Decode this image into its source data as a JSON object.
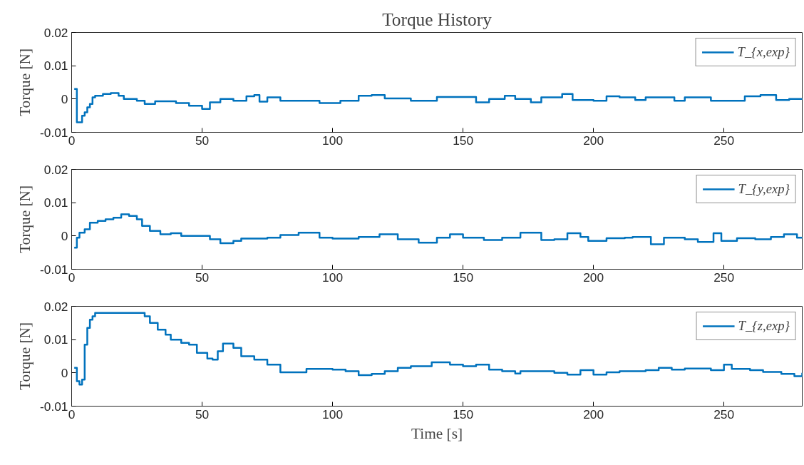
{
  "chart_data": [
    {
      "type": "step",
      "title": "Torque History",
      "ylabel": "Torque [N]",
      "xlim": [
        0,
        280
      ],
      "ylim": [
        -0.01,
        0.02
      ],
      "xticks": [
        0,
        50,
        100,
        150,
        200,
        250
      ],
      "yticks": [
        -0.01,
        0,
        0.01,
        0.02
      ],
      "grid": false,
      "legend": "top right",
      "x": [
        1,
        2,
        4,
        5,
        6,
        7,
        8,
        9,
        12,
        15,
        18,
        20,
        25,
        28,
        32,
        40,
        45,
        50,
        53,
        57,
        62,
        67,
        70,
        72,
        75,
        80,
        90,
        95,
        103,
        110,
        115,
        120,
        130,
        140,
        148,
        155,
        160,
        166,
        170,
        176,
        180,
        188,
        192,
        200,
        205,
        210,
        216,
        220,
        225,
        231,
        235,
        240,
        245,
        250,
        258,
        264,
        270,
        275,
        280
      ],
      "series": [
        {
          "name": "T_{x,exp}",
          "color": "#0072bd",
          "values": [
            0.003,
            -0.007,
            -0.005,
            -0.004,
            -0.0025,
            -0.0015,
            0.0005,
            0.001,
            0.0015,
            0.0018,
            0.001,
            0,
            -0.0005,
            -0.0015,
            -0.0007,
            -0.0012,
            -0.002,
            -0.003,
            -0.001,
            0,
            -0.0005,
            0.0008,
            0.0012,
            -0.0008,
            0.0005,
            -0.0005,
            -0.0005,
            -0.0012,
            -0.0005,
            0.001,
            0.0012,
            0.0002,
            -0.0005,
            0.0006,
            0.0006,
            -0.001,
            0,
            0.001,
            0,
            -0.001,
            0.0005,
            0.0015,
            -0.0003,
            -0.0005,
            0.0008,
            0.0005,
            -0.0003,
            0.0005,
            0.0005,
            -0.0005,
            0.0005,
            0.0005,
            -0.0005,
            -0.0005,
            0.0008,
            0.0012,
            -0.0003,
            0,
            -0.0002
          ]
        }
      ]
    },
    {
      "type": "step",
      "ylabel": "Torque [N]",
      "xlim": [
        0,
        280
      ],
      "ylim": [
        -0.01,
        0.02
      ],
      "xticks": [
        0,
        50,
        100,
        150,
        200,
        250
      ],
      "yticks": [
        -0.01,
        0,
        0.01,
        0.02
      ],
      "grid": false,
      "legend": "top right",
      "x": [
        1,
        2,
        3,
        5,
        7,
        10,
        13,
        16,
        19,
        22,
        25,
        27,
        30,
        34,
        38,
        42,
        50,
        53,
        57,
        62,
        65,
        75,
        80,
        87,
        95,
        100,
        110,
        118,
        125,
        133,
        140,
        145,
        150,
        158,
        165,
        172,
        180,
        185,
        190,
        195,
        198,
        205,
        212,
        215,
        222,
        227,
        235,
        240,
        246,
        249,
        255,
        262,
        268,
        273,
        278,
        280
      ],
      "series": [
        {
          "name": "T_{y,exp}",
          "color": "#0072bd",
          "values": [
            -0.0035,
            -0.0005,
            0.001,
            0.002,
            0.004,
            0.0045,
            0.005,
            0.0055,
            0.0065,
            0.006,
            0.005,
            0.003,
            0.0015,
            0.0005,
            0.0008,
            0,
            0,
            -0.001,
            -0.0022,
            -0.0015,
            -0.0008,
            -0.0005,
            0.0003,
            0.001,
            -0.0005,
            -0.0008,
            -0.0003,
            0.0005,
            -0.001,
            -0.002,
            -0.0005,
            0.0005,
            -0.0005,
            -0.0012,
            -0.0005,
            0.001,
            -0.0012,
            -0.001,
            0.0008,
            -0.0003,
            -0.0015,
            -0.0007,
            -0.0005,
            -0.0003,
            -0.0025,
            -0.0005,
            -0.001,
            -0.0018,
            0.0008,
            -0.0015,
            -0.0007,
            -0.001,
            -0.0003,
            0.0005,
            -0.0005,
            -0.0008
          ]
        }
      ]
    },
    {
      "type": "step",
      "xlabel": "Time [s]",
      "ylabel": "Torque [N]",
      "xlim": [
        0,
        280
      ],
      "ylim": [
        -0.01,
        0.02
      ],
      "xticks": [
        0,
        50,
        100,
        150,
        200,
        250
      ],
      "yticks": [
        -0.01,
        0,
        0.01,
        0.02
      ],
      "grid": false,
      "legend": "top right",
      "x": [
        1,
        2,
        3,
        4,
        5,
        6,
        7,
        8,
        9,
        27,
        28,
        30,
        33,
        36,
        38,
        42,
        45,
        48,
        52,
        54,
        56,
        58,
        60,
        62,
        65,
        70,
        75,
        80,
        85,
        90,
        100,
        105,
        110,
        115,
        120,
        125,
        130,
        138,
        145,
        150,
        155,
        160,
        165,
        170,
        172,
        178,
        185,
        190,
        195,
        200,
        205,
        210,
        220,
        225,
        230,
        235,
        245,
        250,
        253,
        260,
        265,
        272,
        277,
        280
      ],
      "series": [
        {
          "name": "T_{z,exp}",
          "color": "#0072bd",
          "values": [
            0.0015,
            -0.0025,
            -0.0035,
            -0.002,
            0.0085,
            0.0135,
            0.016,
            0.017,
            0.018,
            0.018,
            0.017,
            0.015,
            0.013,
            0.0115,
            0.01,
            0.009,
            0.0085,
            0.006,
            0.0043,
            0.004,
            0.0065,
            0.0088,
            0.0088,
            0.0075,
            0.005,
            0.004,
            0.0025,
            0.0002,
            0.0002,
            0.0012,
            0.001,
            0.0005,
            -0.0007,
            -0.0003,
            0.0005,
            0.0015,
            0.002,
            0.0032,
            0.0025,
            0.002,
            0.0025,
            0.001,
            0.0005,
            -0.0002,
            0.0005,
            0.0005,
            0,
            -0.0005,
            0.0008,
            -0.0005,
            0.0002,
            0.0005,
            0.0008,
            0.0015,
            0.001,
            0.0013,
            0.0008,
            0.0025,
            0.0012,
            0.0008,
            0.0003,
            -0.0003,
            -0.001,
            0
          ]
        }
      ]
    }
  ]
}
